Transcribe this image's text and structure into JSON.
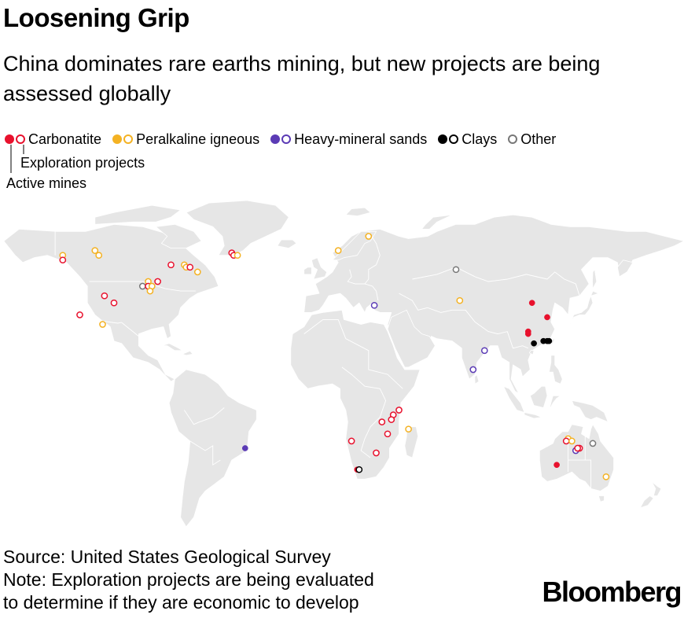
{
  "title": "Loosening Grip",
  "subtitle": "China dominates rare earths mining, but new projects are being assessed globally",
  "legend": {
    "items": [
      {
        "label": "Carbonatite",
        "color": "#e8112d",
        "symbol": "filled-and-open"
      },
      {
        "label": "Peralkaline igneous",
        "color": "#f4b223",
        "symbol": "filled-and-open"
      },
      {
        "label": "Heavy-mineral sands",
        "color": "#5b3bb5",
        "symbol": "filled-and-open"
      },
      {
        "label": "Clays",
        "color": "#000000",
        "symbol": "filled-and-open"
      },
      {
        "label": "Other",
        "color": "#777777",
        "symbol": "open"
      }
    ],
    "open_key": "Exploration projects",
    "filled_key": "Active mines"
  },
  "map": {
    "land_color": "#e6e6e6",
    "border_color": "#ffffff",
    "sites": [
      {
        "type": "carbonatite",
        "status": "exploration",
        "lon": -48,
        "lat": 61
      },
      {
        "type": "carbonatite",
        "status": "exploration",
        "lon": -47,
        "lat": 60
      },
      {
        "type": "peralkaline",
        "status": "exploration",
        "lon": -45,
        "lat": 60
      },
      {
        "type": "peralkaline",
        "status": "exploration",
        "lon": -120,
        "lat": 62
      },
      {
        "type": "peralkaline",
        "status": "exploration",
        "lon": -118,
        "lat": 60
      },
      {
        "type": "peralkaline",
        "status": "exploration",
        "lon": -137,
        "lat": 60
      },
      {
        "type": "carbonatite",
        "status": "exploration",
        "lon": -137,
        "lat": 58
      },
      {
        "type": "carbonatite",
        "status": "exploration",
        "lon": -80,
        "lat": 56
      },
      {
        "type": "peralkaline",
        "status": "exploration",
        "lon": -73,
        "lat": 56
      },
      {
        "type": "peralkaline",
        "status": "exploration",
        "lon": -72,
        "lat": 55
      },
      {
        "type": "carbonatite",
        "status": "exploration",
        "lon": -70,
        "lat": 55
      },
      {
        "type": "peralkaline",
        "status": "exploration",
        "lon": -66,
        "lat": 53
      },
      {
        "type": "carbonatite",
        "status": "exploration",
        "lon": -87,
        "lat": 49
      },
      {
        "type": "peralkaline",
        "status": "exploration",
        "lon": -92,
        "lat": 49
      },
      {
        "type": "other",
        "status": "exploration",
        "lon": -95,
        "lat": 47
      },
      {
        "type": "carbonatite",
        "status": "exploration",
        "lon": -92,
        "lat": 47
      },
      {
        "type": "peralkaline",
        "status": "exploration",
        "lon": -90,
        "lat": 47
      },
      {
        "type": "peralkaline",
        "status": "exploration",
        "lon": -91,
        "lat": 45
      },
      {
        "type": "carbonatite",
        "status": "exploration",
        "lon": -115,
        "lat": 43
      },
      {
        "type": "carbonatite",
        "status": "exploration",
        "lon": -110,
        "lat": 40
      },
      {
        "type": "carbonatite",
        "status": "exploration",
        "lon": -128,
        "lat": 35
      },
      {
        "type": "peralkaline",
        "status": "exploration",
        "lon": -116,
        "lat": 31
      },
      {
        "type": "peralkaline",
        "status": "exploration",
        "lon": 24,
        "lat": 68
      },
      {
        "type": "peralkaline",
        "status": "exploration",
        "lon": 8,
        "lat": 62
      },
      {
        "type": "other",
        "status": "exploration",
        "lon": 70,
        "lat": 54
      },
      {
        "type": "heavy-sands",
        "status": "exploration",
        "lon": 27,
        "lat": 39
      },
      {
        "type": "peralkaline",
        "status": "exploration",
        "lon": 72,
        "lat": 41
      },
      {
        "type": "carbonatite",
        "status": "active",
        "lon": 110,
        "lat": 40
      },
      {
        "type": "carbonatite",
        "status": "active",
        "lon": 118,
        "lat": 34
      },
      {
        "type": "carbonatite",
        "status": "active",
        "lon": 108,
        "lat": 28
      },
      {
        "type": "carbonatite",
        "status": "active",
        "lon": 108,
        "lat": 27
      },
      {
        "type": "clays",
        "status": "active",
        "lon": 111,
        "lat": 23
      },
      {
        "type": "clays",
        "status": "active",
        "lon": 116,
        "lat": 24
      },
      {
        "type": "clays",
        "status": "active",
        "lon": 118,
        "lat": 24
      },
      {
        "type": "clays",
        "status": "active",
        "lon": 119,
        "lat": 24
      },
      {
        "type": "heavy-sands",
        "status": "exploration",
        "lon": 85,
        "lat": 20
      },
      {
        "type": "heavy-sands",
        "status": "exploration",
        "lon": 79,
        "lat": 12
      },
      {
        "type": "carbonatite",
        "status": "exploration",
        "lon": 40,
        "lat": -5
      },
      {
        "type": "carbonatite",
        "status": "exploration",
        "lon": 37,
        "lat": -7
      },
      {
        "type": "carbonatite",
        "status": "exploration",
        "lon": 36,
        "lat": -9
      },
      {
        "type": "carbonatite",
        "status": "exploration",
        "lon": 31,
        "lat": -10
      },
      {
        "type": "peralkaline",
        "status": "exploration",
        "lon": 45,
        "lat": -13
      },
      {
        "type": "carbonatite",
        "status": "exploration",
        "lon": 34,
        "lat": -15
      },
      {
        "type": "carbonatite",
        "status": "exploration",
        "lon": 15,
        "lat": -18
      },
      {
        "type": "carbonatite",
        "status": "exploration",
        "lon": 28,
        "lat": -23
      },
      {
        "type": "carbonatite",
        "status": "active",
        "lon": 18,
        "lat": -30
      },
      {
        "type": "clays",
        "status": "exploration",
        "lon": 19,
        "lat": -30
      },
      {
        "type": "heavy-sands",
        "status": "active",
        "lon": -41,
        "lat": -21
      },
      {
        "type": "peralkaline",
        "status": "exploration",
        "lon": 129,
        "lat": -17
      },
      {
        "type": "carbonatite",
        "status": "exploration",
        "lon": 128,
        "lat": -18
      },
      {
        "type": "peralkaline",
        "status": "exploration",
        "lon": 131,
        "lat": -18
      },
      {
        "type": "carbonatite",
        "status": "exploration",
        "lon": 135,
        "lat": -21
      },
      {
        "type": "heavy-sands",
        "status": "exploration",
        "lon": 133,
        "lat": -22
      },
      {
        "type": "carbonatite",
        "status": "exploration",
        "lon": 134,
        "lat": -21
      },
      {
        "type": "other",
        "status": "exploration",
        "lon": 142,
        "lat": -19
      },
      {
        "type": "carbonatite",
        "status": "active",
        "lon": 123,
        "lat": -28
      },
      {
        "type": "peralkaline",
        "status": "exploration",
        "lon": 149,
        "lat": -33
      }
    ]
  },
  "footer": {
    "source": "Source: United States Geological Survey",
    "note_line1": "Note: Exploration projects are being evaluated",
    "note_line2": "to determine if they are economic to develop"
  },
  "logo": "Bloomberg"
}
